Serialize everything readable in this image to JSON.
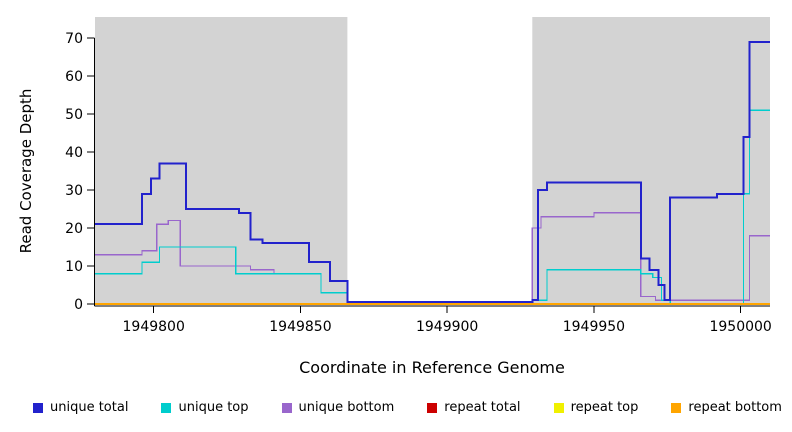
{
  "chart_data": {
    "type": "line",
    "subtype": "step-coverage-plot",
    "title": "",
    "xlabel": "Coordinate in Reference Genome",
    "ylabel": "Read Coverage Depth",
    "xlim": [
      1949780,
      1950010
    ],
    "ylim": [
      0,
      70
    ],
    "panel_color": "#d3d3d3",
    "background_color": "#ffffff",
    "axis_color": "#000000",
    "grid": false,
    "legend_position": "bottom",
    "x_ticks": [
      {
        "v": 1949800,
        "label": "1949800"
      },
      {
        "v": 1949850,
        "label": "1949850"
      },
      {
        "v": 1949900,
        "label": "1949900"
      },
      {
        "v": 1949950,
        "label": "1949950"
      },
      {
        "v": 1950000,
        "label": "1950000"
      }
    ],
    "y_ticks": [
      {
        "v": 0,
        "label": "0"
      },
      {
        "v": 10,
        "label": "10"
      },
      {
        "v": 20,
        "label": "20"
      },
      {
        "v": 30,
        "label": "30"
      },
      {
        "v": 40,
        "label": "40"
      },
      {
        "v": 50,
        "label": "50"
      },
      {
        "v": 60,
        "label": "60"
      },
      {
        "v": 70,
        "label": "70"
      }
    ],
    "shaded_regions": [
      [
        1949780,
        1949866
      ],
      [
        1949929,
        1950010
      ]
    ],
    "draw_order": [
      3,
      4,
      2,
      1,
      0,
      5
    ],
    "series": [
      {
        "name": "unique total",
        "color": "#2222CC",
        "width": 2,
        "points": [
          [
            1949780,
            21
          ],
          [
            1949796,
            29
          ],
          [
            1949799,
            33
          ],
          [
            1949802,
            37
          ],
          [
            1949811,
            25
          ],
          [
            1949829,
            24
          ],
          [
            1949833,
            17
          ],
          [
            1949837,
            16
          ],
          [
            1949853,
            11
          ],
          [
            1949860,
            6
          ],
          [
            1949866,
            0.5
          ],
          [
            1949929,
            1
          ],
          [
            1949931,
            30
          ],
          [
            1949934,
            32
          ],
          [
            1949966,
            12
          ],
          [
            1949969,
            9
          ],
          [
            1949972,
            5
          ],
          [
            1949974,
            1
          ],
          [
            1949976,
            28
          ],
          [
            1949992,
            29
          ],
          [
            1950001,
            44
          ],
          [
            1950003,
            69
          ]
        ]
      },
      {
        "name": "unique top",
        "color": "#00CDCD",
        "width": 1.3,
        "points": [
          [
            1949780,
            8
          ],
          [
            1949796,
            11
          ],
          [
            1949802,
            15
          ],
          [
            1949828,
            8
          ],
          [
            1949857,
            3
          ],
          [
            1949866,
            0
          ],
          [
            1949929,
            1
          ],
          [
            1949934,
            9
          ],
          [
            1949966,
            8
          ],
          [
            1949970,
            7
          ],
          [
            1949973,
            1
          ],
          [
            1949976,
            0
          ],
          [
            1950001,
            29
          ],
          [
            1950003,
            51
          ]
        ]
      },
      {
        "name": "unique bottom",
        "color": "#9966CC",
        "width": 1.3,
        "points": [
          [
            1949780,
            13
          ],
          [
            1949796,
            14
          ],
          [
            1949801,
            21
          ],
          [
            1949805,
            22
          ],
          [
            1949809,
            10
          ],
          [
            1949833,
            9
          ],
          [
            1949841,
            8
          ],
          [
            1949857,
            3
          ],
          [
            1949866,
            0.5
          ],
          [
            1949929,
            20
          ],
          [
            1949932,
            23
          ],
          [
            1949950,
            24
          ],
          [
            1949966,
            2
          ],
          [
            1949971,
            1
          ],
          [
            1950003,
            18
          ]
        ]
      },
      {
        "name": "repeat total",
        "color": "#CC0000",
        "width": 1.3,
        "points": [
          [
            1949780,
            0
          ]
        ]
      },
      {
        "name": "repeat top",
        "color": "#F0F000",
        "width": 1.3,
        "points": [
          [
            1949780,
            0
          ]
        ]
      },
      {
        "name": "repeat bottom",
        "color": "#FFA500",
        "width": 1.6,
        "points": [
          [
            1949780,
            0
          ]
        ]
      }
    ]
  }
}
